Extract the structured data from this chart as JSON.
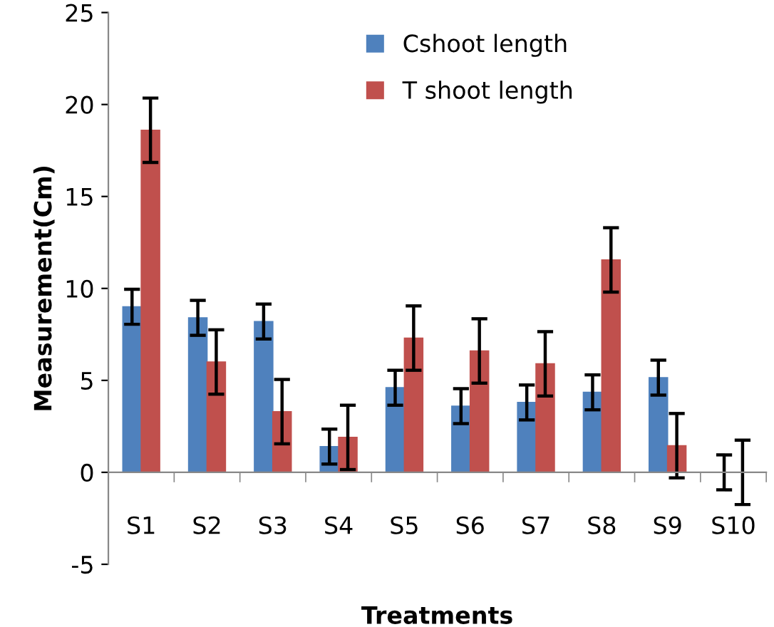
{
  "chart_data": {
    "type": "bar",
    "xlabel": "Treatments",
    "ylabel": "Measurement(Cm)",
    "categories": [
      "S1",
      "S2",
      "S3",
      "S4",
      "S5",
      "S6",
      "S7",
      "S8",
      "S9",
      "S10"
    ],
    "series": [
      {
        "name": "Cshoot length",
        "color": "#4f81bd",
        "values": [
          9.0,
          8.4,
          8.2,
          1.4,
          4.6,
          3.6,
          3.8,
          4.35,
          5.15,
          0
        ],
        "errors": [
          0.95,
          0.95,
          0.95,
          0.95,
          0.95,
          0.95,
          0.95,
          0.95,
          0.95,
          0.95
        ]
      },
      {
        "name": "T shoot length",
        "color": "#c0504d",
        "values": [
          18.6,
          6.0,
          3.3,
          1.9,
          7.3,
          6.6,
          5.9,
          11.55,
          1.45,
          0
        ],
        "errors": [
          1.75,
          1.75,
          1.75,
          1.75,
          1.75,
          1.75,
          1.75,
          1.75,
          1.75,
          1.75
        ]
      }
    ],
    "ylim": [
      -5,
      25
    ],
    "yticks": [
      -5,
      0,
      5,
      10,
      15,
      20,
      25
    ],
    "grid": false,
    "legend": "top"
  }
}
